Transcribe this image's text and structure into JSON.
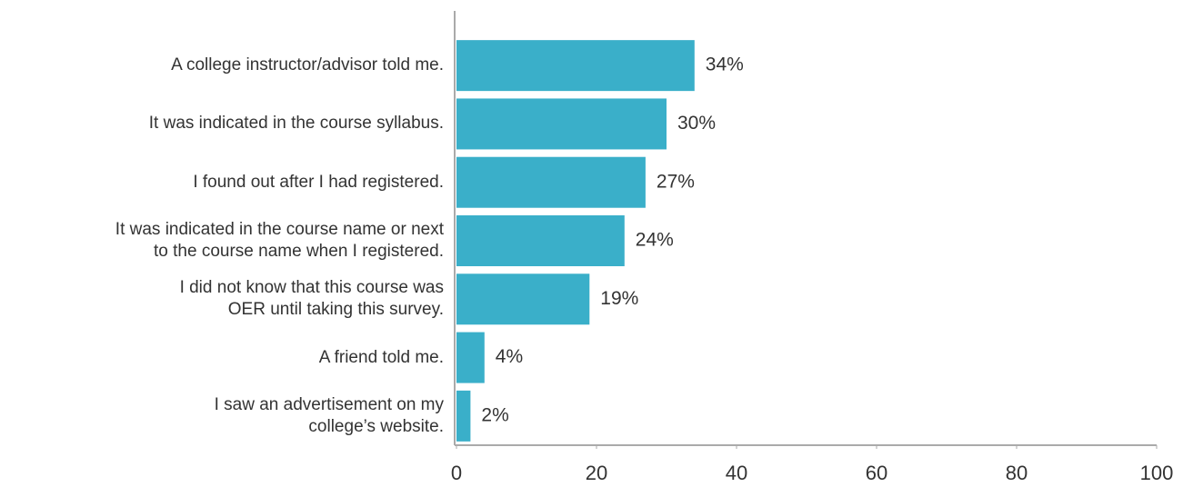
{
  "chart_data": {
    "type": "bar",
    "orientation": "horizontal",
    "categories": [
      "A college instructor/advisor told me.",
      "It was indicated in the course syllabus.",
      "I found out after I had registered.",
      "It was indicated in the course name or next\nto the course name when I registered.",
      "I did not know that this course was\nOER until taking this survey.",
      "A friend told me.",
      "I saw an advertisement on my\ncollege’s website."
    ],
    "values": [
      34,
      30,
      27,
      24,
      19,
      4,
      2
    ],
    "value_labels": [
      "34%",
      "30%",
      "27%",
      "24%",
      "19%",
      "4%",
      "2%"
    ],
    "color": "#3aafc9",
    "xlim": [
      0,
      100
    ],
    "xticks": [
      0,
      20,
      40,
      60,
      80,
      100
    ],
    "grid": false
  }
}
